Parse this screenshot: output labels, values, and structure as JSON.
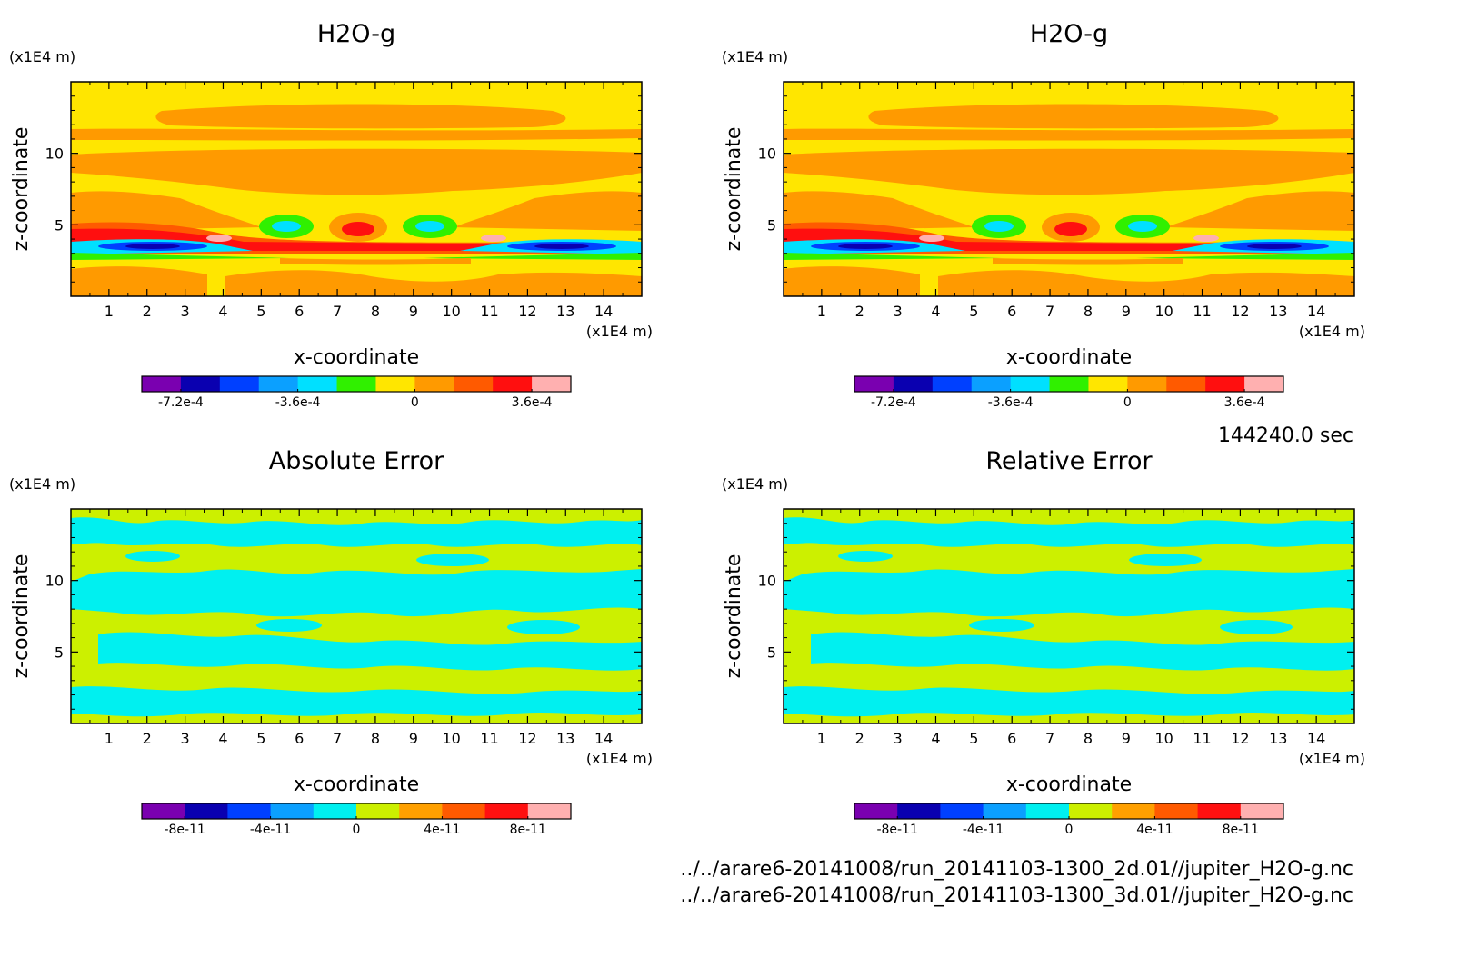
{
  "chart_data": [
    {
      "type": "heatmap",
      "title": "H2O-g",
      "xlabel": "x-coordinate",
      "ylabel": "z-coordinate",
      "x_unit": "(x1E4 m)",
      "y_unit": "(x1E4 m)",
      "xlim": [
        0,
        15
      ],
      "ylim": [
        0,
        15
      ],
      "xticks": [
        1,
        2,
        3,
        4,
        5,
        6,
        7,
        8,
        9,
        10,
        11,
        12,
        13,
        14
      ],
      "yticks": [
        5,
        10
      ],
      "colorbar": {
        "levels": 11,
        "colors": [
          "#7a00b0",
          "#0a00b0",
          "#0040ff",
          "#0ba0ff",
          "#00e0ff",
          "#30f000",
          "#ffe600",
          "#ff9a00",
          "#ff5a00",
          "#ff0f0f",
          "#ffb0b0"
        ],
        "labels": [
          "-7.2e-4",
          "-3.6e-4",
          "0",
          "3.6e-4"
        ],
        "label_values": [
          -0.00072,
          -0.00036,
          0,
          0.00036
        ]
      }
    },
    {
      "type": "heatmap",
      "title": "H2O-g",
      "xlabel": "x-coordinate",
      "ylabel": "z-coordinate",
      "x_unit": "(x1E4 m)",
      "y_unit": "(x1E4 m)",
      "xlim": [
        0,
        15
      ],
      "ylim": [
        0,
        15
      ],
      "xticks": [
        1,
        2,
        3,
        4,
        5,
        6,
        7,
        8,
        9,
        10,
        11,
        12,
        13,
        14
      ],
      "yticks": [
        5,
        10
      ],
      "colorbar": {
        "levels": 11,
        "colors": [
          "#7a00b0",
          "#0a00b0",
          "#0040ff",
          "#0ba0ff",
          "#00e0ff",
          "#30f000",
          "#ffe600",
          "#ff9a00",
          "#ff5a00",
          "#ff0f0f",
          "#ffb0b0"
        ],
        "labels": [
          "-7.2e-4",
          "-3.6e-4",
          "0",
          "3.6e-4"
        ],
        "label_values": [
          -0.00072,
          -0.00036,
          0,
          0.00036
        ]
      }
    },
    {
      "type": "heatmap",
      "title": "Absolute Error",
      "xlabel": "x-coordinate",
      "ylabel": "z-coordinate",
      "x_unit": "(x1E4 m)",
      "y_unit": "(x1E4 m)",
      "xlim": [
        0,
        15
      ],
      "ylim": [
        0,
        15
      ],
      "xticks": [
        1,
        2,
        3,
        4,
        5,
        6,
        7,
        8,
        9,
        10,
        11,
        12,
        13,
        14
      ],
      "yticks": [
        5,
        10
      ],
      "colorbar": {
        "levels": 10,
        "colors": [
          "#7a00b0",
          "#0a00b0",
          "#0040ff",
          "#0ba0ff",
          "#00f0f0",
          "#ccf000",
          "#ffa000",
          "#ff5a00",
          "#ff1010",
          "#ffb0b0"
        ],
        "labels": [
          "-8e-11",
          "-4e-11",
          "0",
          "4e-11",
          "8e-11"
        ],
        "label_values": [
          -8e-11,
          -4e-11,
          0,
          4e-11,
          8e-11
        ]
      }
    },
    {
      "type": "heatmap",
      "title": "Relative Error",
      "xlabel": "x-coordinate",
      "ylabel": "z-coordinate",
      "x_unit": "(x1E4 m)",
      "y_unit": "(x1E4 m)",
      "xlim": [
        0,
        15
      ],
      "ylim": [
        0,
        15
      ],
      "xticks": [
        1,
        2,
        3,
        4,
        5,
        6,
        7,
        8,
        9,
        10,
        11,
        12,
        13,
        14
      ],
      "yticks": [
        5,
        10
      ],
      "colorbar": {
        "levels": 10,
        "colors": [
          "#7a00b0",
          "#0a00b0",
          "#0040ff",
          "#0ba0ff",
          "#00f0f0",
          "#ccf000",
          "#ffa000",
          "#ff5a00",
          "#ff1010",
          "#ffb0b0"
        ],
        "labels": [
          "-8e-11",
          "-4e-11",
          "0",
          "4e-11",
          "8e-11"
        ],
        "label_values": [
          -8e-11,
          -4e-11,
          0,
          4e-11,
          8e-11
        ]
      }
    }
  ],
  "time_label": "144240.0 sec",
  "file_paths": [
    "../../arare6-20141008/run_20141103-1300_2d.01//jupiter_H2O-g.nc",
    "../../arare6-20141008/run_20141103-1300_3d.01//jupiter_H2O-g.nc"
  ]
}
